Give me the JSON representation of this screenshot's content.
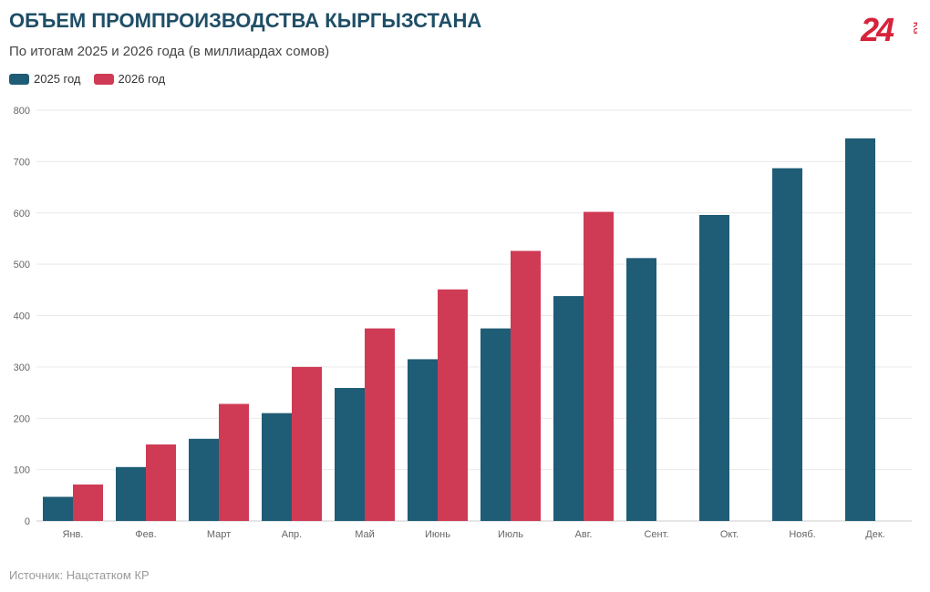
{
  "title": "ОБЪЕМ ПРОМПРОИЗВОДСТВА КЫРГЫЗСТАНА",
  "subtitle": "По итогам 2025 и 2026 года (в миллиардах сомов)",
  "source": "Источник: Нацстатком КР",
  "logo": {
    "text": "24",
    "suffix": "KG",
    "color": "#d6233b"
  },
  "colors": {
    "series_2025": "#1f5c75",
    "series_2026": "#cf3b55"
  },
  "chart_data": {
    "type": "bar",
    "categories": [
      "Янв.",
      "Фев.",
      "Март",
      "Апр.",
      "Май",
      "Июнь",
      "Июль",
      "Авг.",
      "Сент.",
      "Окт.",
      "Нояб.",
      "Дек."
    ],
    "series": [
      {
        "name": "2025 год",
        "values": [
          47,
          105,
          160,
          210,
          259,
          315,
          375,
          438,
          512,
          596,
          687,
          745
        ]
      },
      {
        "name": "2026 год",
        "values": [
          71,
          149,
          228,
          300,
          375,
          451,
          526,
          602,
          null,
          null,
          null,
          null
        ]
      }
    ],
    "ylim": [
      0,
      800
    ],
    "yticks": [
      0,
      100,
      200,
      300,
      400,
      500,
      600,
      700,
      800
    ],
    "grid": true,
    "legend": "top-left"
  }
}
